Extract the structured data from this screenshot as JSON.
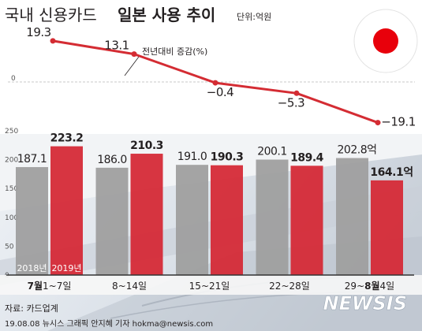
{
  "header": {
    "title_light": "국내 신용카드",
    "title_bold": "일본 사용 추이",
    "unit": "단위:억원"
  },
  "footer": {
    "source": "자료: 카드업계",
    "credit": "19.08.08 뉴시스 그래픽 안지혜 기자 hokma@newsis.com",
    "watermark": "NEWSIS"
  },
  "colors": {
    "bar_2018": "#9f9f9f",
    "bar_2019": "#d52a37",
    "line": "#d42c33",
    "title": "#231f20",
    "flag_red": "#e8000b",
    "watermark": "#ffffff"
  },
  "chart_data": [
    {
      "type": "line",
      "title": "",
      "series": [
        {
          "name": "전년대비 증감(%)",
          "values": [
            19.3,
            13.1,
            -0.4,
            -5.3,
            -19.1
          ]
        }
      ],
      "labels": [
        "19.3",
        "13.1",
        "−0.4",
        "−5.3",
        "−19.1"
      ],
      "zero_label": "0",
      "ylim": [
        -22,
        21
      ]
    },
    {
      "type": "bar",
      "categories": [
        "7월1~7일",
        "8~14일",
        "15~21일",
        "22~28일",
        "29~8월4일"
      ],
      "category_labels": [
        {
          "bold": "7월",
          "normal": "1~7일"
        },
        {
          "bold": "",
          "normal": "8~14일"
        },
        {
          "bold": "",
          "normal": "15~21일"
        },
        {
          "bold": "",
          "normal": "22~28일"
        },
        {
          "pre": "29~",
          "bold": "8월",
          "normal": "4일"
        }
      ],
      "series": [
        {
          "name": "2018년",
          "values": [
            187.1,
            186.0,
            191.0,
            200.1,
            202.8
          ],
          "labels": [
            "187.1",
            "186.0",
            "191.0",
            "200.1",
            "202.8억"
          ]
        },
        {
          "name": "2019년",
          "values": [
            223.2,
            210.3,
            190.3,
            189.4,
            164.1
          ],
          "labels": [
            "223.2",
            "210.3",
            "190.3",
            "189.4",
            "164.1억"
          ]
        }
      ],
      "y_ticks": [
        "0",
        "50",
        "100",
        "150",
        "200",
        "250"
      ],
      "ylim": [
        0,
        265
      ]
    }
  ]
}
